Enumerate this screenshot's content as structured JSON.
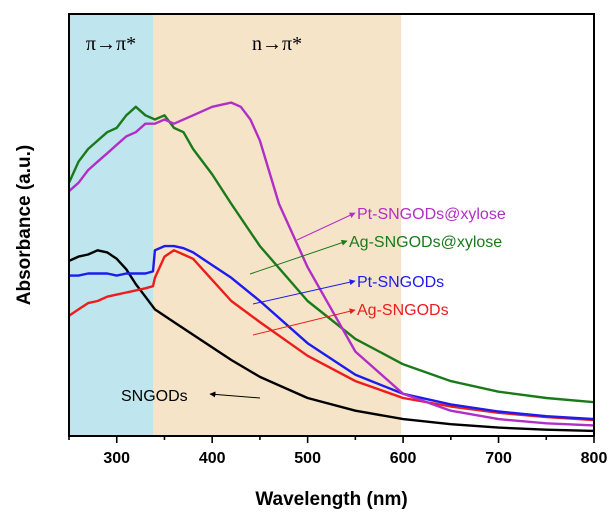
{
  "chart_data": {
    "type": "line",
    "xlabel": "Wavelength (nm)",
    "ylabel": "Absorbance (a.u.)",
    "xlim": [
      250,
      800
    ],
    "ylim": [
      0,
      1.0
    ],
    "x_ticks": [
      300,
      400,
      500,
      600,
      700,
      800
    ],
    "y_ticks_shown": false,
    "grid": false,
    "regions": [
      {
        "label": "π→π*",
        "x_range": [
          250,
          338
        ],
        "color": "#bfe6ee"
      },
      {
        "label": "n→π*",
        "x_range": [
          338,
          598
        ],
        "color": "#f6e4c8"
      }
    ],
    "series": [
      {
        "name": "SNGODs",
        "color": "#000000",
        "x": [
          250,
          260,
          270,
          280,
          290,
          300,
          310,
          320,
          330,
          340,
          360,
          380,
          400,
          420,
          450,
          500,
          550,
          600,
          650,
          700,
          750,
          800
        ],
        "y": [
          0.415,
          0.425,
          0.43,
          0.44,
          0.435,
          0.42,
          0.395,
          0.36,
          0.33,
          0.3,
          0.27,
          0.24,
          0.21,
          0.18,
          0.14,
          0.09,
          0.06,
          0.04,
          0.028,
          0.02,
          0.015,
          0.012
        ]
      },
      {
        "name": "Ag-SNGODs",
        "color": "#ee1c1c",
        "x": [
          250,
          260,
          270,
          280,
          290,
          300,
          310,
          320,
          330,
          338,
          340,
          350,
          360,
          370,
          380,
          400,
          420,
          450,
          500,
          550,
          600,
          650,
          700,
          750,
          800
        ],
        "y": [
          0.285,
          0.3,
          0.315,
          0.32,
          0.33,
          0.335,
          0.34,
          0.345,
          0.35,
          0.355,
          0.375,
          0.425,
          0.44,
          0.43,
          0.42,
          0.37,
          0.32,
          0.27,
          0.19,
          0.13,
          0.09,
          0.07,
          0.055,
          0.045,
          0.038
        ]
      },
      {
        "name": "Pt-SNGODs",
        "color": "#1c1cee",
        "x": [
          250,
          260,
          270,
          280,
          290,
          300,
          310,
          320,
          330,
          338,
          340,
          350,
          360,
          370,
          380,
          400,
          420,
          450,
          500,
          550,
          600,
          650,
          700,
          750,
          800
        ],
        "y": [
          0.38,
          0.38,
          0.385,
          0.385,
          0.385,
          0.38,
          0.385,
          0.385,
          0.385,
          0.39,
          0.44,
          0.45,
          0.45,
          0.445,
          0.435,
          0.405,
          0.375,
          0.32,
          0.22,
          0.145,
          0.1,
          0.075,
          0.058,
          0.047,
          0.04
        ]
      },
      {
        "name": "Ag-SNGODs@xylose",
        "color": "#1a7a1a",
        "x": [
          250,
          260,
          270,
          280,
          290,
          300,
          310,
          320,
          330,
          340,
          350,
          360,
          370,
          380,
          400,
          420,
          450,
          500,
          550,
          600,
          650,
          700,
          750,
          800
        ],
        "y": [
          0.6,
          0.65,
          0.68,
          0.7,
          0.72,
          0.73,
          0.76,
          0.78,
          0.76,
          0.75,
          0.76,
          0.73,
          0.72,
          0.68,
          0.62,
          0.55,
          0.45,
          0.32,
          0.23,
          0.17,
          0.13,
          0.105,
          0.09,
          0.08
        ]
      },
      {
        "name": "Pt-SNGODs@xylose",
        "color": "#b22fc7",
        "x": [
          250,
          260,
          270,
          280,
          290,
          300,
          310,
          320,
          330,
          340,
          350,
          360,
          380,
          400,
          420,
          430,
          440,
          450,
          470,
          500,
          550,
          600,
          650,
          700,
          750,
          800
        ],
        "y": [
          0.58,
          0.6,
          0.63,
          0.65,
          0.67,
          0.69,
          0.71,
          0.72,
          0.74,
          0.74,
          0.75,
          0.74,
          0.76,
          0.78,
          0.79,
          0.78,
          0.75,
          0.7,
          0.55,
          0.4,
          0.2,
          0.1,
          0.06,
          0.04,
          0.03,
          0.025
        ]
      }
    ]
  }
}
